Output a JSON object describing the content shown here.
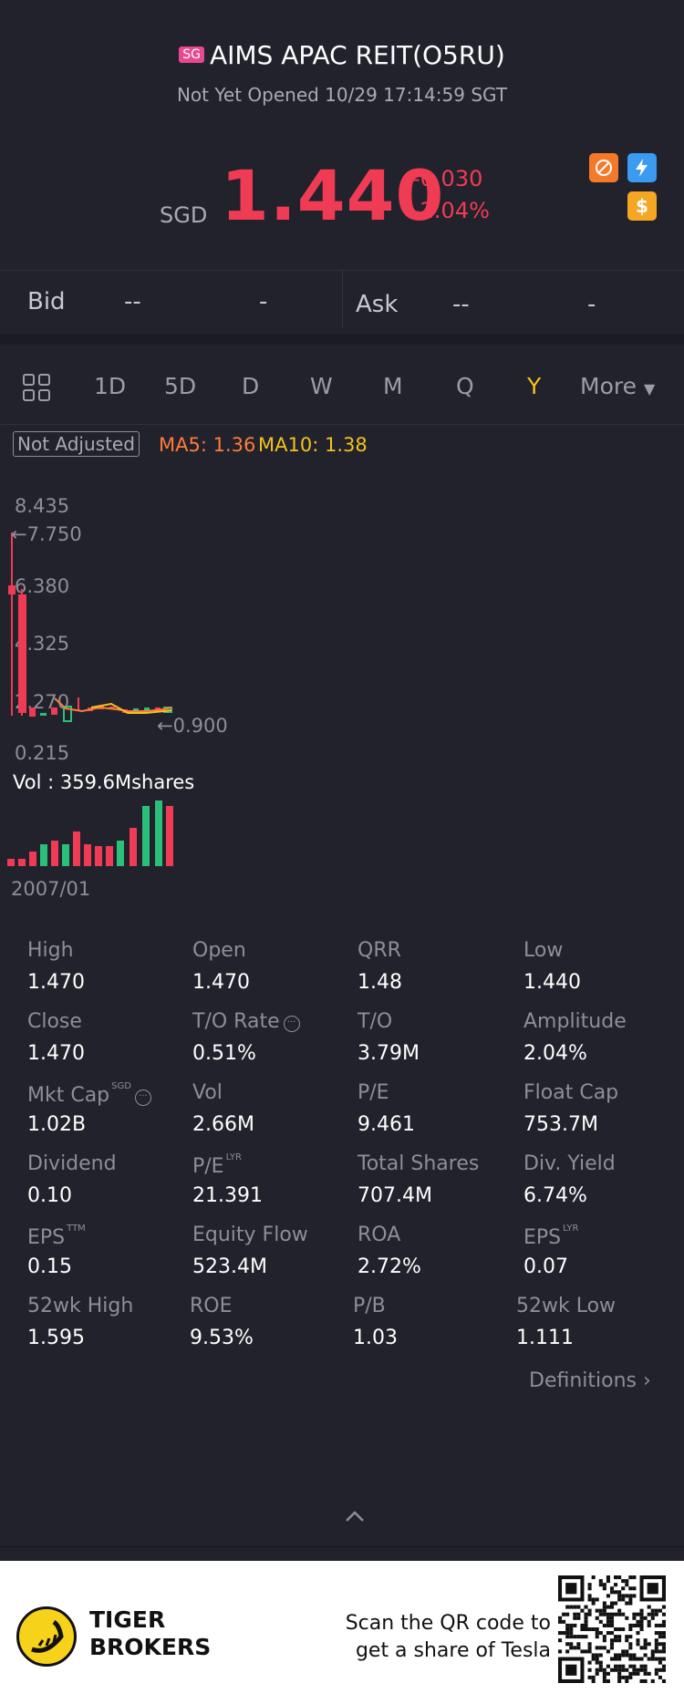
{
  "header": {
    "market_badge": "SG",
    "title": "AIMS APAC REIT(O5RU)",
    "status": "Not Yet Opened 10/29 17:14:59 SGT"
  },
  "quote": {
    "currency": "SGD",
    "price": "1.440",
    "change": "-0.030",
    "change_pct": "-2.04%",
    "price_color": "#f03b55"
  },
  "bidask": {
    "bid_label": "Bid",
    "bid_price": "--",
    "bid_size": "-",
    "ask_label": "Ask",
    "ask_price": "--",
    "ask_size": "-"
  },
  "tabs": {
    "items": [
      "1D",
      "5D",
      "D",
      "W",
      "M",
      "Q",
      "Y"
    ],
    "active": "Y",
    "more": "More"
  },
  "chart": {
    "adjust_label": "Not Adjusted",
    "ma5": "MA5: 1.36",
    "ma10": "MA10: 1.38",
    "y_ticks": [
      "8.435",
      "6.380",
      "4.325",
      "2.270",
      "0.215"
    ],
    "high_marker": "7.750",
    "low_marker": "0.900",
    "vol_label": "Vol  : 359.6Mshares",
    "start_date": "2007/01"
  },
  "stats": [
    {
      "label": "High",
      "value": "1.470"
    },
    {
      "label": "Open",
      "value": "1.470"
    },
    {
      "label": "QRR",
      "value": "1.48"
    },
    {
      "label": "Low",
      "value": "1.440"
    },
    {
      "label": "Close",
      "value": "1.470"
    },
    {
      "label": "T/O Rate",
      "value": "0.51%"
    },
    {
      "label": "T/O",
      "value": "3.79M"
    },
    {
      "label": "Amplitude",
      "value": "2.04%"
    },
    {
      "label": "Mkt Cap",
      "value": "1.02B",
      "sup": "SGD"
    },
    {
      "label": "Vol",
      "value": "2.66M"
    },
    {
      "label": "P/E",
      "value": "9.461"
    },
    {
      "label": "Float Cap",
      "value": "753.7M"
    },
    {
      "label": "Dividend",
      "value": "0.10"
    },
    {
      "label": "P/E",
      "value": "21.391",
      "sup": "LYR"
    },
    {
      "label": "Total Shares",
      "value": "707.4M"
    },
    {
      "label": "Div. Yield",
      "value": "6.74%"
    },
    {
      "label": "EPS",
      "value": "0.15",
      "sup": "TTM"
    },
    {
      "label": "Equity Flow",
      "value": "523.4M"
    },
    {
      "label": "ROA",
      "value": "2.72%"
    },
    {
      "label": "EPS",
      "value": "0.07",
      "sup": "LYR"
    },
    {
      "label": "52wk High",
      "value": "1.595"
    },
    {
      "label": "ROE",
      "value": "9.53%"
    },
    {
      "label": "P/B",
      "value": "1.03"
    },
    {
      "label": "52wk Low",
      "value": "1.111"
    }
  ],
  "definitions_link": "Definitions",
  "footer": {
    "brand_line1": "TIGER",
    "brand_line2": "BROKERS",
    "scan_line1": "Scan the QR code to",
    "scan_line2": "get a share of Tesla"
  }
}
